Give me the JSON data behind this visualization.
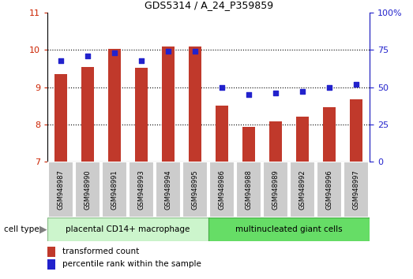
{
  "title": "GDS5314 / A_24_P359859",
  "samples": [
    "GSM948987",
    "GSM948990",
    "GSM948991",
    "GSM948993",
    "GSM948994",
    "GSM948995",
    "GSM948986",
    "GSM948988",
    "GSM948989",
    "GSM948992",
    "GSM948996",
    "GSM948997"
  ],
  "bar_values": [
    9.35,
    9.55,
    10.02,
    9.52,
    10.1,
    10.1,
    8.5,
    7.93,
    8.08,
    8.22,
    8.47,
    8.68
  ],
  "percentile_values": [
    68,
    71,
    73,
    68,
    74,
    74,
    50,
    45,
    46,
    47,
    50,
    52
  ],
  "bar_bottom": 7.0,
  "ylim_left": [
    7,
    11
  ],
  "ylim_right": [
    0,
    100
  ],
  "yticks_left": [
    7,
    8,
    9,
    10,
    11
  ],
  "yticks_right": [
    0,
    25,
    50,
    75,
    100
  ],
  "bar_color": "#c0392b",
  "dot_color": "#2222cc",
  "group1_color": "#ccf5cc",
  "group2_color": "#66dd66",
  "group1_label": "placental CD14+ macrophage",
  "group2_label": "multinucleated giant cells",
  "cell_type_label": "cell type",
  "legend_bar_label": "transformed count",
  "legend_dot_label": "percentile rank within the sample",
  "group1_indices": [
    0,
    1,
    2,
    3,
    4,
    5
  ],
  "group2_indices": [
    6,
    7,
    8,
    9,
    10,
    11
  ],
  "axis_color_left": "#cc2200",
  "axis_color_right": "#2222cc",
  "label_bg_color": "#cccccc",
  "label_border_color": "#ffffff"
}
